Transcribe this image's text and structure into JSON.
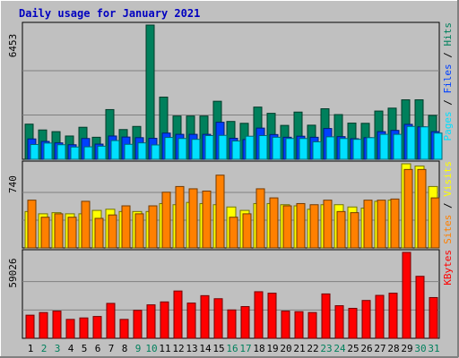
{
  "chart_data": {
    "type": "bar",
    "title": "Daily usage for January 2021",
    "days": [
      "1",
      "2",
      "3",
      "4",
      "5",
      "6",
      "7",
      "8",
      "9",
      "10",
      "11",
      "12",
      "13",
      "14",
      "15",
      "16",
      "17",
      "18",
      "19",
      "20",
      "21",
      "22",
      "23",
      "24",
      "25",
      "26",
      "27",
      "28",
      "29",
      "30",
      "31"
    ],
    "weekend_days": [
      "2",
      "3",
      "9",
      "10",
      "16",
      "17",
      "23",
      "24",
      "30",
      "31"
    ],
    "colors": {
      "hits": "#00805c",
      "files": "#0040ff",
      "pages": "#00e0ff",
      "visits": "#ffff00",
      "sites": "#ff8000",
      "kbytes": "#ff0000",
      "day_weekday": "#000000",
      "day_weekend": "#00805c",
      "title": "#0000c0"
    },
    "panels": [
      {
        "id": "hits",
        "ymax_label": "6453",
        "ymax": 6453,
        "label_parts": [
          {
            "text": "Pages",
            "color": "#00e0ff"
          },
          {
            "text": " / ",
            "color": "#000000"
          },
          {
            "text": "Files",
            "color": "#0040ff"
          },
          {
            "text": " / ",
            "color": "#000000"
          },
          {
            "text": "Hits",
            "color": "#00805c"
          }
        ],
        "series": [
          {
            "name": "Hits",
            "color": "#00805c",
            "values": [
              1690,
              1410,
              1330,
              1120,
              1540,
              1060,
              2390,
              1430,
              1580,
              6453,
              2990,
              2080,
              2080,
              2080,
              2790,
              1820,
              1730,
              2510,
              2210,
              1630,
              2270,
              1640,
              2430,
              2150,
              1740,
              1730,
              2320,
              2460,
              2860,
              2860,
              2110
            ]
          },
          {
            "name": "Files",
            "color": "#0040ff",
            "values": [
              980,
              860,
              790,
              700,
              1000,
              730,
              1120,
              1070,
              1040,
              1010,
              1260,
              1200,
              1200,
              1200,
              1780,
              1010,
              950,
              1500,
              1190,
              1060,
              1110,
              1060,
              1480,
              1090,
              990,
              1040,
              1330,
              1390,
              1680,
              1560,
              1330
            ]
          },
          {
            "name": "Pages",
            "color": "#00e0ff",
            "values": [
              710,
              780,
              700,
              590,
              600,
              630,
              900,
              720,
              790,
              690,
              1050,
              1000,
              960,
              1140,
              1150,
              880,
              1110,
              1140,
              1060,
              1000,
              1000,
              840,
              1080,
              1000,
              960,
              1040,
              1200,
              1200,
              1580,
              1560,
              1260
            ]
          }
        ]
      },
      {
        "id": "visits",
        "ymax_label": "740",
        "ymax": 740,
        "label_parts": [
          {
            "text": "Sites",
            "color": "#ff8000"
          },
          {
            "text": " / ",
            "color": "#000000"
          },
          {
            "text": "Visits",
            "color": "#ffff00"
          }
        ],
        "series": [
          {
            "name": "Visits",
            "color": "#ffff00",
            "values": [
              320,
              300,
              310,
              300,
              300,
              330,
              340,
              320,
              320,
              320,
              390,
              380,
              400,
              390,
              380,
              360,
              330,
              390,
              390,
              380,
              370,
              340,
              380,
              380,
              360,
              350,
              410,
              420,
              740,
              720,
              540
            ]
          },
          {
            "name": "Sites",
            "color": "#ff8000",
            "values": [
              420,
              270,
              300,
              270,
              410,
              260,
              290,
              370,
              300,
              370,
              490,
              540,
              520,
              500,
              640,
              270,
              300,
              520,
              440,
              370,
              390,
              380,
              420,
              320,
              310,
              420,
              420,
              430,
              690,
              690,
              440
            ]
          }
        ]
      },
      {
        "id": "kbytes",
        "ymax_label": "59026",
        "ymax": 59026,
        "label_parts": [
          {
            "text": "KBytes",
            "color": "#ff0000"
          }
        ],
        "series": [
          {
            "name": "KBytes",
            "color": "#ff0000",
            "values": [
              15900,
              17700,
              18700,
              13000,
              14000,
              15000,
              24000,
              13000,
              19200,
              23000,
              25000,
              32500,
              24200,
              29300,
              27200,
              19500,
              21800,
              32000,
              31000,
              18700,
              18300,
              17700,
              30500,
              22400,
              20600,
              26000,
              29500,
              31000,
              59026,
              42600,
              28000
            ]
          }
        ]
      }
    ]
  }
}
